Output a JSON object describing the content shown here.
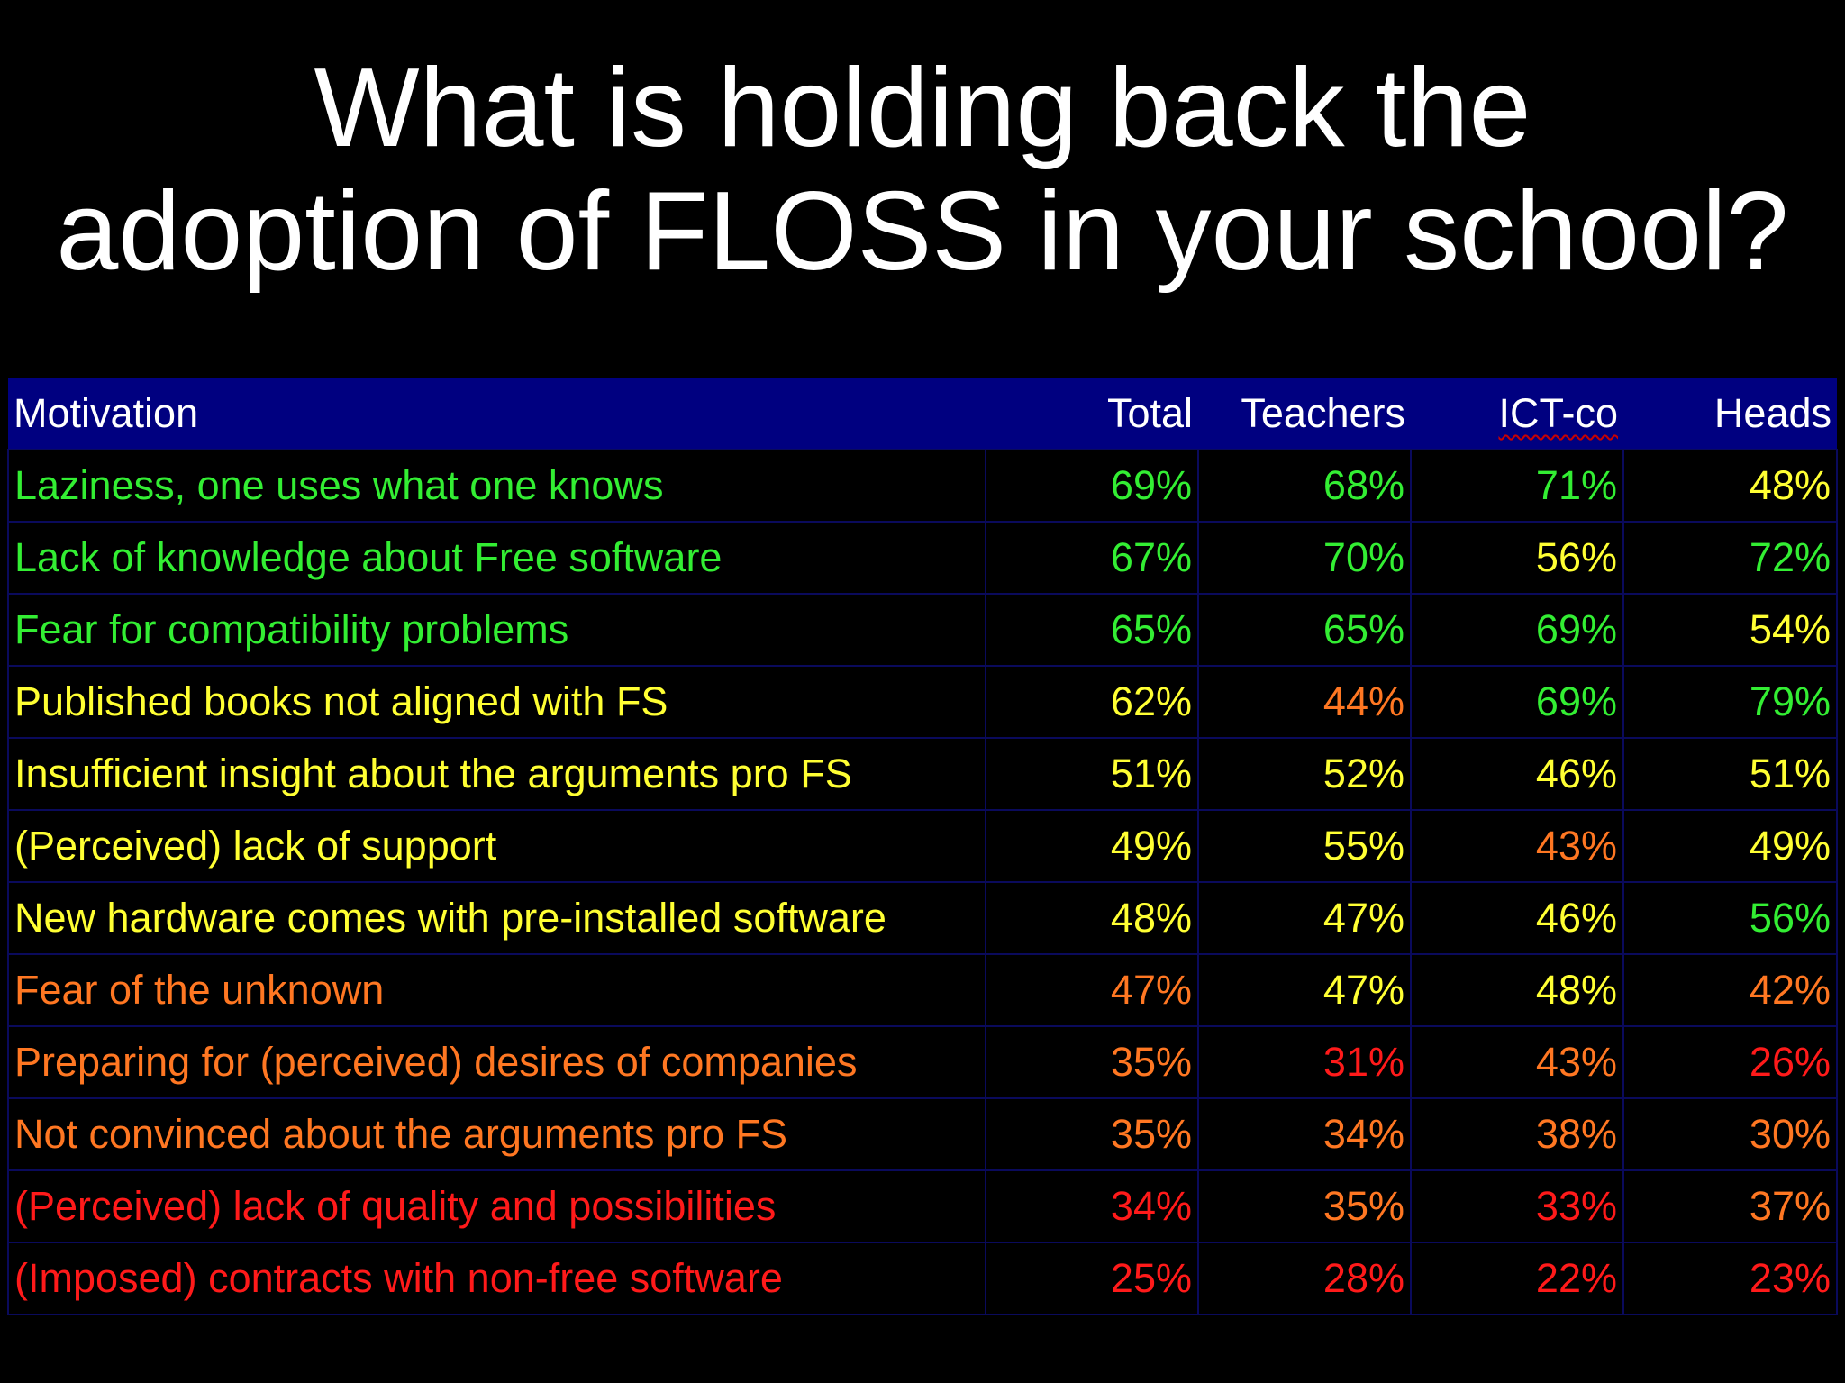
{
  "title": {
    "line1": "What is holding back the",
    "line2": "adoption of FLOSS in your school?"
  },
  "colors": {
    "green": "#33ee33",
    "yellow": "#ffff33",
    "orange": "#ff7722",
    "red": "#ff1a1a",
    "header_bg": "#000080"
  },
  "table": {
    "headers": {
      "motivation": "Motivation",
      "total": "Total",
      "teachers": "Teachers",
      "ictco": "ICT-co",
      "heads": "Heads"
    },
    "rows": [
      {
        "motivation": {
          "text": "Laziness, one uses what one knows",
          "color": "green"
        },
        "total": {
          "text": "69%",
          "color": "green"
        },
        "teachers": {
          "text": "68%",
          "color": "green"
        },
        "ictco": {
          "text": "71%",
          "color": "green"
        },
        "heads": {
          "text": "48%",
          "color": "yellow"
        }
      },
      {
        "motivation": {
          "text": "Lack of knowledge about Free software",
          "color": "green"
        },
        "total": {
          "text": "67%",
          "color": "green"
        },
        "teachers": {
          "text": "70%",
          "color": "green"
        },
        "ictco": {
          "text": "56%",
          "color": "yellow"
        },
        "heads": {
          "text": "72%",
          "color": "green"
        }
      },
      {
        "motivation": {
          "text": "Fear for compatibility problems",
          "color": "green"
        },
        "total": {
          "text": "65%",
          "color": "green"
        },
        "teachers": {
          "text": "65%",
          "color": "green"
        },
        "ictco": {
          "text": "69%",
          "color": "green"
        },
        "heads": {
          "text": "54%",
          "color": "yellow"
        }
      },
      {
        "motivation": {
          "text": "Published books not aligned with FS",
          "color": "yellow"
        },
        "total": {
          "text": "62%",
          "color": "yellow"
        },
        "teachers": {
          "text": "44%",
          "color": "orange"
        },
        "ictco": {
          "text": "69%",
          "color": "green"
        },
        "heads": {
          "text": "79%",
          "color": "green"
        }
      },
      {
        "motivation": {
          "text": "Insufficient insight about the arguments pro FS",
          "color": "yellow"
        },
        "total": {
          "text": "51%",
          "color": "yellow"
        },
        "teachers": {
          "text": "52%",
          "color": "yellow"
        },
        "ictco": {
          "text": "46%",
          "color": "yellow"
        },
        "heads": {
          "text": "51%",
          "color": "yellow"
        }
      },
      {
        "motivation": {
          "text": "(Perceived) lack of support",
          "color": "yellow"
        },
        "total": {
          "text": "49%",
          "color": "yellow"
        },
        "teachers": {
          "text": "55%",
          "color": "yellow"
        },
        "ictco": {
          "text": "43%",
          "color": "orange"
        },
        "heads": {
          "text": "49%",
          "color": "yellow"
        }
      },
      {
        "motivation": {
          "text": "New hardware comes with pre-installed software",
          "color": "yellow"
        },
        "total": {
          "text": "48%",
          "color": "yellow"
        },
        "teachers": {
          "text": "47%",
          "color": "yellow"
        },
        "ictco": {
          "text": "46%",
          "color": "yellow"
        },
        "heads": {
          "text": "56%",
          "color": "green"
        }
      },
      {
        "motivation": {
          "text": "Fear of the unknown",
          "color": "orange"
        },
        "total": {
          "text": "47%",
          "color": "orange"
        },
        "teachers": {
          "text": "47%",
          "color": "yellow"
        },
        "ictco": {
          "text": "48%",
          "color": "yellow"
        },
        "heads": {
          "text": "42%",
          "color": "orange"
        }
      },
      {
        "motivation": {
          "text": "Preparing for (perceived) desires of companies",
          "color": "orange"
        },
        "total": {
          "text": "35%",
          "color": "orange"
        },
        "teachers": {
          "text": "31%",
          "color": "red"
        },
        "ictco": {
          "text": "43%",
          "color": "orange"
        },
        "heads": {
          "text": "26%",
          "color": "red"
        }
      },
      {
        "motivation": {
          "text": "Not convinced about the arguments pro FS",
          "color": "orange"
        },
        "total": {
          "text": "35%",
          "color": "orange"
        },
        "teachers": {
          "text": "34%",
          "color": "orange"
        },
        "ictco": {
          "text": "38%",
          "color": "orange"
        },
        "heads": {
          "text": "30%",
          "color": "orange"
        }
      },
      {
        "motivation": {
          "text": "(Perceived) lack of quality and possibilities",
          "color": "red"
        },
        "total": {
          "text": "34%",
          "color": "red"
        },
        "teachers": {
          "text": "35%",
          "color": "orange"
        },
        "ictco": {
          "text": "33%",
          "color": "red"
        },
        "heads": {
          "text": "37%",
          "color": "orange"
        }
      },
      {
        "motivation": {
          "text": "(Imposed) contracts with non-free software",
          "color": "red"
        },
        "total": {
          "text": "25%",
          "color": "red"
        },
        "teachers": {
          "text": "28%",
          "color": "red"
        },
        "ictco": {
          "text": "22%",
          "color": "red"
        },
        "heads": {
          "text": "23%",
          "color": "red"
        }
      }
    ]
  }
}
